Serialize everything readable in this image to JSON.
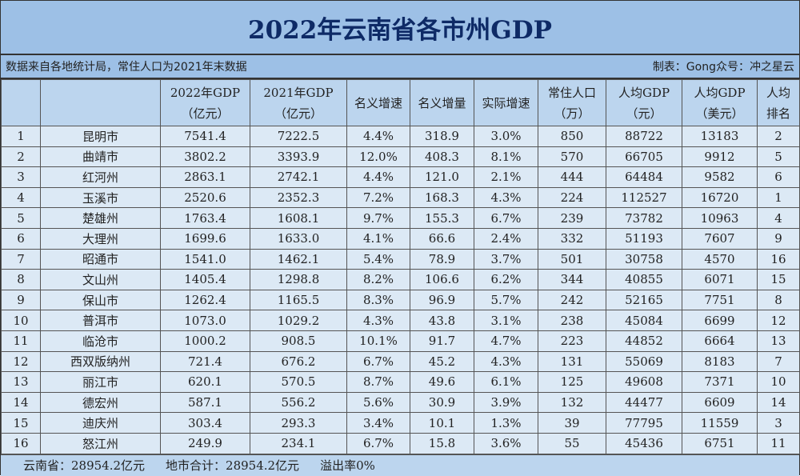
{
  "title": "2022年云南省各市州GDP",
  "source_note": "数据来自各地统计局，常住人口为2021年末数据",
  "author_note": "制表：Gong众号：冲之星云",
  "headers": [
    {
      "line1": "",
      "line2": ""
    },
    {
      "line1": "",
      "line2": ""
    },
    {
      "line1": "2022年GDP",
      "line2": "（亿元）"
    },
    {
      "line1": "2021年GDP",
      "line2": "（亿元）"
    },
    {
      "line1": "名义增速",
      "line2": ""
    },
    {
      "line1": "名义增量",
      "line2": ""
    },
    {
      "line1": "实际增速",
      "line2": ""
    },
    {
      "line1": "常住人口",
      "line2": "（万）"
    },
    {
      "line1": "人均GDP",
      "line2": "（元）"
    },
    {
      "line1": "人均GDP",
      "line2": "（美元）"
    },
    {
      "line1": "人均",
      "line2": "排名"
    }
  ],
  "rows": [
    [
      "1",
      "昆明市",
      "7541.4",
      "7222.5",
      "4.4%",
      "318.9",
      "3.0%",
      "850",
      "88722",
      "13183",
      "2"
    ],
    [
      "2",
      "曲靖市",
      "3802.2",
      "3393.9",
      "12.0%",
      "408.3",
      "8.1%",
      "570",
      "66705",
      "9912",
      "5"
    ],
    [
      "3",
      "红河州",
      "2863.1",
      "2742.1",
      "4.4%",
      "121.0",
      "2.1%",
      "444",
      "64484",
      "9582",
      "6"
    ],
    [
      "4",
      "玉溪市",
      "2520.6",
      "2352.3",
      "7.2%",
      "168.3",
      "4.3%",
      "224",
      "112527",
      "16720",
      "1"
    ],
    [
      "5",
      "楚雄州",
      "1763.4",
      "1608.1",
      "9.7%",
      "155.3",
      "6.7%",
      "239",
      "73782",
      "10963",
      "4"
    ],
    [
      "6",
      "大理州",
      "1699.6",
      "1633.0",
      "4.1%",
      "66.6",
      "2.4%",
      "332",
      "51193",
      "7607",
      "9"
    ],
    [
      "7",
      "昭通市",
      "1541.0",
      "1462.1",
      "5.4%",
      "78.9",
      "3.7%",
      "501",
      "30758",
      "4570",
      "16"
    ],
    [
      "8",
      "文山州",
      "1405.4",
      "1298.8",
      "8.2%",
      "106.6",
      "6.2%",
      "344",
      "40855",
      "6071",
      "15"
    ],
    [
      "9",
      "保山市",
      "1262.4",
      "1165.5",
      "8.3%",
      "96.9",
      "5.7%",
      "242",
      "52165",
      "7751",
      "8"
    ],
    [
      "10",
      "普洱市",
      "1073.0",
      "1029.2",
      "4.3%",
      "43.8",
      "3.1%",
      "238",
      "45084",
      "6699",
      "12"
    ],
    [
      "11",
      "临沧市",
      "1000.2",
      "908.5",
      "10.1%",
      "91.7",
      "4.7%",
      "223",
      "44852",
      "6664",
      "13"
    ],
    [
      "12",
      "西双版纳州",
      "721.4",
      "676.2",
      "6.7%",
      "45.2",
      "4.3%",
      "131",
      "55069",
      "8183",
      "7"
    ],
    [
      "13",
      "丽江市",
      "620.1",
      "570.5",
      "8.7%",
      "49.6",
      "6.1%",
      "125",
      "49608",
      "7371",
      "10"
    ],
    [
      "14",
      "德宏州",
      "587.1",
      "556.2",
      "5.6%",
      "30.9",
      "3.9%",
      "132",
      "44477",
      "6609",
      "14"
    ],
    [
      "15",
      "迪庆州",
      "303.4",
      "293.3",
      "3.4%",
      "10.1",
      "1.3%",
      "39",
      "77795",
      "11559",
      "3"
    ],
    [
      "16",
      "怒江州",
      "249.9",
      "234.1",
      "6.7%",
      "15.8",
      "3.6%",
      "55",
      "45436",
      "6751",
      "11"
    ]
  ],
  "footer": {
    "province_total": "云南省：28954.2亿元",
    "city_sum": "地市合计：28954.2亿元",
    "overflow_rate": "溢出率0%"
  },
  "colors": {
    "title_bg": "#9dc0e6",
    "title_text": "#0e2a66",
    "header_bg": "#bcd5ee",
    "row_bg": "#dce9f5"
  }
}
